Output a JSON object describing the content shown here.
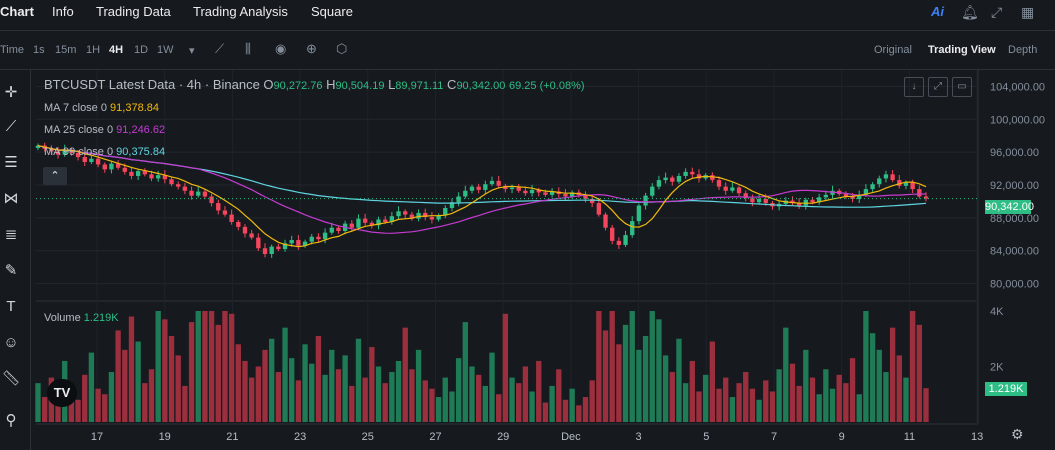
{
  "nav": {
    "tabs": [
      "Chart",
      "Info",
      "Trading Data",
      "Trading Analysis",
      "Square"
    ],
    "active": "Chart",
    "right_icons": [
      "ai-icon",
      "bell-icon",
      "expand-icon",
      "grid-icon"
    ],
    "ai_label": "Ai"
  },
  "toolbar": {
    "intervals": [
      "Time",
      "1s",
      "15m",
      "1H",
      "4H",
      "1D",
      "1W"
    ],
    "active_interval": "4H",
    "more_glyph": "▾",
    "views": [
      "Original",
      "Trading View",
      "Depth"
    ],
    "active_view": "Trading View"
  },
  "header": {
    "title": "BTCUSDT Latest Data · 4h · Binance",
    "o_label": "O",
    "o_value": "90,272.76",
    "h_label": "H",
    "h_value": "90,504.19",
    "l_label": "L",
    "l_value": "89,971.11",
    "c_label": "C",
    "c_value": "90,342.00",
    "change": "69.25 (+0.08%)"
  },
  "ma": [
    {
      "label": "MA 7 close 0",
      "value": "91,378.84",
      "color": "#f0b90b"
    },
    {
      "label": "MA 25 close 0",
      "value": "91,246.62",
      "color": "#c53bd1"
    },
    {
      "label": "MA 99 close 0",
      "value": "90,375.84",
      "color": "#5fd4e0"
    }
  ],
  "volume": {
    "label": "Volume",
    "value": "1.219K"
  },
  "price_tag": "90,342.00",
  "vol_tag": "1.219K",
  "logo_text": "TV",
  "colors": {
    "up": "#2ebd85",
    "down": "#f6465d",
    "bg": "#161a1e"
  },
  "chart_data": {
    "type": "candlestick",
    "price_axis": {
      "ticks": [
        "104,000.00",
        "100,000.00",
        "96,000.00",
        "92,000.00",
        "88,000.00",
        "84,000.00",
        "80,000.00"
      ]
    },
    "volume_axis": {
      "ticks": [
        "4K",
        "2K"
      ]
    },
    "x_ticks": [
      "17",
      "19",
      "21",
      "23",
      "25",
      "27",
      "29",
      "Dec",
      "3",
      "5",
      "7",
      "9",
      "11",
      "13"
    ],
    "ylim": [
      78000,
      106000
    ],
    "close_series": [
      96800,
      96400,
      96100,
      95700,
      96300,
      95900,
      95400,
      94800,
      95200,
      94500,
      93900,
      94600,
      94100,
      93600,
      93100,
      93700,
      93300,
      92800,
      93200,
      92700,
      92100,
      91800,
      91300,
      90700,
      91200,
      90600,
      89800,
      88900,
      88400,
      87500,
      86900,
      86100,
      85600,
      84300,
      83600,
      84500,
      84200,
      84900,
      85300,
      84600,
      85100,
      85700,
      85400,
      86200,
      86800,
      86400,
      87300,
      86800,
      87900,
      87400,
      87100,
      87800,
      87500,
      88200,
      88800,
      88400,
      87900,
      88600,
      88100,
      87800,
      88300,
      89200,
      89900,
      90600,
      91300,
      91800,
      91400,
      92100,
      92500,
      91900,
      91500,
      91700,
      91300,
      91000,
      91400,
      91100,
      90800,
      91200,
      90900,
      90600,
      91100,
      90800,
      90300,
      89800,
      88400,
      86800,
      85200,
      84700,
      85900,
      87600,
      89500,
      90700,
      91800,
      92600,
      92900,
      92400,
      93100,
      93600,
      93300,
      92800,
      93200,
      92600,
      91800,
      91300,
      91700,
      91000,
      90400,
      89900,
      90300,
      89800,
      89400,
      89700,
      90100,
      89800,
      89500,
      90200,
      89900,
      90500,
      90800,
      91300,
      90900,
      90600,
      90300,
      90800,
      91500,
      92100,
      92800,
      93300,
      92600,
      91900,
      92300,
      91500,
      90600,
      90342
    ],
    "volume_series": [
      1.4,
      0.9,
      1.6,
      1.1,
      2.2,
      1.3,
      0.8,
      1.7,
      2.5,
      1.2,
      1.0,
      1.8,
      3.3,
      2.6,
      3.8,
      2.9,
      1.4,
      1.9,
      4.0,
      3.7,
      3.1,
      2.4,
      1.3,
      3.6,
      4.0,
      4.0,
      4.0,
      3.5,
      4.0,
      3.9,
      2.8,
      2.2,
      1.6,
      2.0,
      2.6,
      3.0,
      1.8,
      3.4,
      2.3,
      1.5,
      2.8,
      2.1,
      3.1,
      1.7,
      2.6,
      1.9,
      2.4,
      1.3,
      3.0,
      1.6,
      2.7,
      2.0,
      1.4,
      1.8,
      2.2,
      3.4,
      1.9,
      2.6,
      1.5,
      1.2,
      0.9,
      1.6,
      1.1,
      2.3,
      3.6,
      2.0,
      1.7,
      1.3,
      2.5,
      1.0,
      3.9,
      1.6,
      1.4,
      2.0,
      1.1,
      2.2,
      0.7,
      1.3,
      1.9,
      0.8,
      1.2,
      0.6,
      0.9,
      1.5,
      4.0,
      3.3,
      4.0,
      2.8,
      3.5,
      4.0,
      2.6,
      3.1,
      4.0,
      3.7,
      2.4,
      1.8,
      3.0,
      1.4,
      2.2,
      1.1,
      1.7,
      2.9,
      1.2,
      1.6,
      0.9,
      1.4,
      1.8,
      1.2,
      0.8,
      1.5,
      1.1,
      1.9,
      3.4,
      2.1,
      1.3,
      2.6,
      1.6,
      1.0,
      1.9,
      1.2,
      1.7,
      1.4,
      2.3,
      1.0,
      4.0,
      3.2,
      2.6,
      1.8,
      3.4,
      2.4,
      1.6,
      4.0,
      3.5,
      1.219
    ]
  }
}
